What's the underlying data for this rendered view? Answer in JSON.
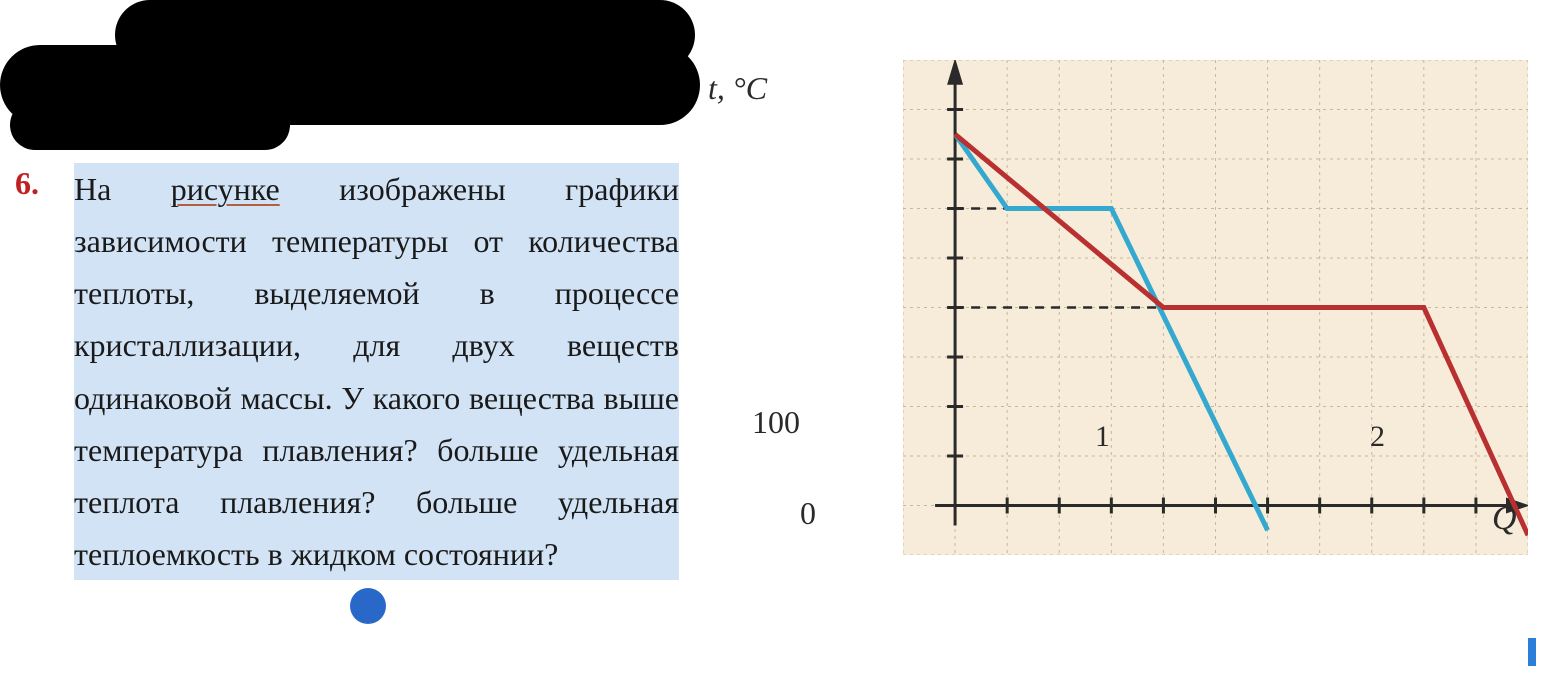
{
  "question": {
    "number": "6.",
    "number_color": "#c02020",
    "text_pre": "На ",
    "text_underlined": "рисунке",
    "text_post": " изображены графики зависимости температуры от количества теплоты, выделяемой в процессе кристаллизации, для двух веществ одинаковой массы. У какого вещества выше температура плавления? больше удельная теплота плавления? больше удельная теплоемкость в жидком состоянии?",
    "highlight_color": "#d2e3f6",
    "text_color": "#1a1a1a",
    "underline_color": "#b06040"
  },
  "chart": {
    "type": "line",
    "background_color": "#f7ecd9",
    "grid_color": "#c8b898",
    "axis_color": "#2a2a2a",
    "y_axis_label": "t, °C",
    "x_axis_label": "Q",
    "y_tick_value": "100",
    "origin_label": "0",
    "grid_x_cells": 12,
    "grid_y_cells": 10,
    "origin_cell_x": 1,
    "origin_cell_y": 9,
    "y_tick_100_cell_y": 7.5,
    "series": [
      {
        "label": "1",
        "color": "#35a8d0",
        "line_width": 5,
        "points_cells": [
          [
            1,
            1.5
          ],
          [
            2,
            3
          ],
          [
            4,
            3
          ],
          [
            7,
            9.5
          ]
        ],
        "label_cell_x": 6.5,
        "label_cell_y": 8
      },
      {
        "label": "2",
        "color": "#b83030",
        "line_width": 5,
        "points_cells": [
          [
            1,
            1.5
          ],
          [
            5,
            5
          ],
          [
            10,
            5
          ],
          [
            12,
            9.6
          ]
        ],
        "label_cell_x": 11,
        "label_cell_y": 8
      }
    ],
    "dashed_lines": [
      {
        "from_cell": [
          1,
          3
        ],
        "to_cell": [
          2,
          3
        ]
      },
      {
        "from_cell": [
          1,
          5
        ],
        "to_cell": [
          5,
          5
        ]
      }
    ]
  }
}
